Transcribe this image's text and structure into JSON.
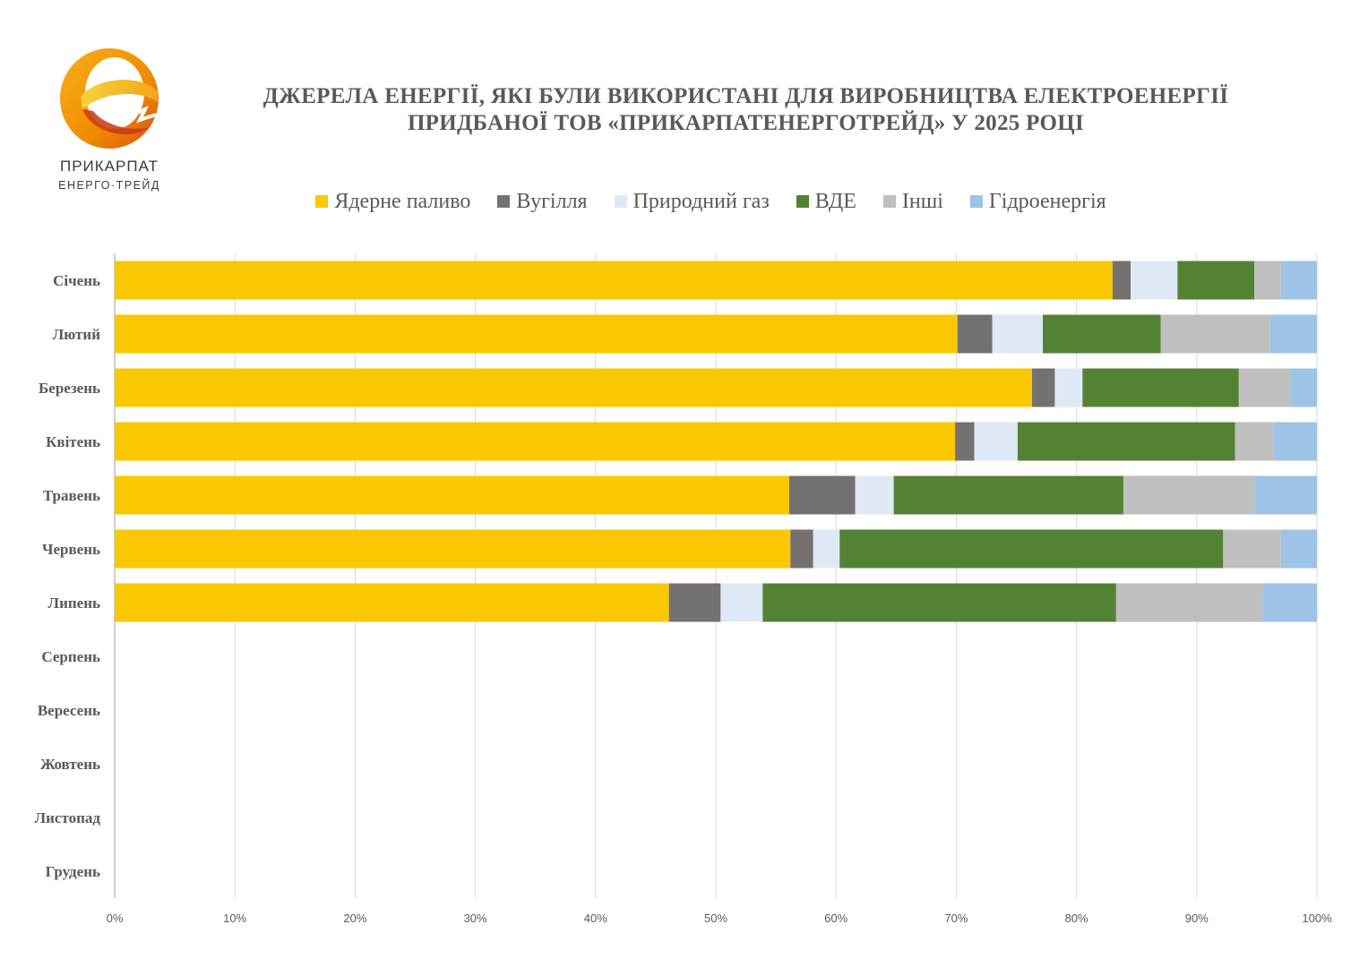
{
  "logo": {
    "line1": "ПРИКАРПАТ",
    "line2": "ЕНЕРГО·ТРЕЙД",
    "colors": {
      "orange": "#f08a00",
      "yellow": "#f7c21a",
      "red": "#c83a12"
    }
  },
  "title": {
    "line1": "ДЖЕРЕЛА ЕНЕРГІЇ, ЯКІ БУЛИ ВИКОРИСТАНІ ДЛЯ ВИРОБНИЦТВА ЕЛЕКТРОЕНЕРГІЇ",
    "line2": "ПРИДБАНОЇ ТОВ «ПРИКАРПАТЕНЕРГОТРЕЙД» У 2025 РОЦІ"
  },
  "chart_data": {
    "type": "bar",
    "orientation": "horizontal",
    "stacked": "percent",
    "categories": [
      "Січень",
      "Лютий",
      "Березень",
      "Квітень",
      "Травень",
      "Червень",
      "Липень",
      "Серпень",
      "Вересень",
      "Жовтень",
      "Листопад",
      "Грудень"
    ],
    "series": [
      {
        "name": "Ядерне паливо",
        "color": "#fac800",
        "values": [
          83.0,
          70.1,
          76.3,
          69.9,
          56.1,
          56.2,
          46.1,
          null,
          null,
          null,
          null,
          null
        ]
      },
      {
        "name": "Вугілля",
        "color": "#767171",
        "values": [
          1.5,
          2.9,
          1.9,
          1.6,
          5.5,
          1.9,
          4.3,
          null,
          null,
          null,
          null,
          null
        ]
      },
      {
        "name": "Природний газ",
        "color": "#dfe9f5",
        "values": [
          3.9,
          4.2,
          2.3,
          3.6,
          3.2,
          2.2,
          3.5,
          null,
          null,
          null,
          null,
          null
        ]
      },
      {
        "name": "ВДЕ",
        "color": "#548235",
        "values": [
          6.4,
          9.8,
          13.0,
          18.1,
          19.1,
          31.9,
          29.4,
          null,
          null,
          null,
          null,
          null
        ]
      },
      {
        "name": "Інші",
        "color": "#bfbfbf",
        "values": [
          2.2,
          9.1,
          4.3,
          3.2,
          10.9,
          4.8,
          12.2,
          null,
          null,
          null,
          null,
          null
        ]
      },
      {
        "name": "Гідроенергія",
        "color": "#9dc3e6",
        "values": [
          3.0,
          3.9,
          2.2,
          3.6,
          5.2,
          3.0,
          4.5,
          null,
          null,
          null,
          null,
          null
        ]
      }
    ],
    "xlim": [
      0,
      100
    ],
    "x_ticks": [
      "0%",
      "10%",
      "20%",
      "30%",
      "40%",
      "50%",
      "60%",
      "70%",
      "80%",
      "90%",
      "100%"
    ],
    "grid": true,
    "legend": "top"
  }
}
